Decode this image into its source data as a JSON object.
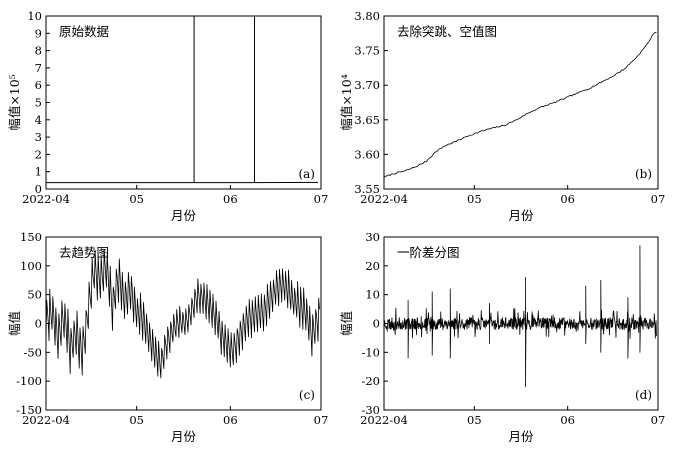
{
  "chart_data": [
    {
      "type": "line",
      "tag": "(a)",
      "title": "原始数据",
      "xlabel": "月份",
      "ylabel": "幅值×10⁵",
      "x_ticks": [
        "2022-04",
        "05",
        "06",
        "07"
      ],
      "xlim": [
        "2022-04-01",
        "2022-07-01"
      ],
      "ylim": [
        0,
        10
      ],
      "y_ticks": [
        "0",
        "1",
        "2",
        "3",
        "4",
        "5",
        "6",
        "7",
        "8",
        "9",
        "10"
      ],
      "series": [
        {
          "points": [
            [
              "2022-04-01",
              0.37
            ],
            [
              "2022-05-20",
              0.37
            ],
            [
              "2022-05-20",
              10
            ],
            [
              "2022-05-20",
              0.37
            ],
            [
              "2022-06-09",
              0.37
            ],
            [
              "2022-06-09",
              10
            ],
            [
              "2022-06-09",
              0.37
            ],
            [
              "2022-06-30",
              0.38
            ]
          ]
        }
      ]
    },
    {
      "type": "line",
      "tag": "(b)",
      "title": "去除突跳、空值图",
      "xlabel": "月份",
      "ylabel": "幅值×10⁴",
      "x_ticks": [
        "2022-04",
        "05",
        "06",
        "07"
      ],
      "xlim": [
        "2022-04-01",
        "2022-07-01"
      ],
      "ylim": [
        3.55,
        3.8
      ],
      "y_ticks": [
        "3.55",
        "3.60",
        "3.65",
        "3.70",
        "3.75",
        "3.80"
      ],
      "series": [
        {
          "points": [
            [
              "2022-04-01",
              3.567
            ],
            [
              "2022-04-04",
              3.572
            ],
            [
              "2022-04-08",
              3.576
            ],
            [
              "2022-04-12",
              3.583
            ],
            [
              "2022-04-15",
              3.59
            ],
            [
              "2022-04-18",
              3.603
            ],
            [
              "2022-04-21",
              3.612
            ],
            [
              "2022-04-25",
              3.619
            ],
            [
              "2022-04-29",
              3.627
            ],
            [
              "2022-05-03",
              3.633
            ],
            [
              "2022-05-07",
              3.638
            ],
            [
              "2022-05-11",
              3.642
            ],
            [
              "2022-05-15",
              3.65
            ],
            [
              "2022-05-19",
              3.66
            ],
            [
              "2022-05-23",
              3.668
            ],
            [
              "2022-05-27",
              3.674
            ],
            [
              "2022-05-31",
              3.681
            ],
            [
              "2022-06-04",
              3.688
            ],
            [
              "2022-06-08",
              3.695
            ],
            [
              "2022-06-12",
              3.704
            ],
            [
              "2022-06-16",
              3.713
            ],
            [
              "2022-06-20",
              3.724
            ],
            [
              "2022-06-24",
              3.741
            ],
            [
              "2022-06-27",
              3.757
            ],
            [
              "2022-06-30",
              3.777
            ]
          ]
        }
      ]
    },
    {
      "type": "line",
      "tag": "(c)",
      "title": "去趋势图",
      "xlabel": "月份",
      "ylabel": "幅值",
      "x_ticks": [
        "2022-04",
        "05",
        "06",
        "07"
      ],
      "xlim": [
        "2022-04-01",
        "2022-07-01"
      ],
      "ylim": [
        -150,
        150
      ],
      "y_ticks": [
        "-150",
        "-100",
        "-50",
        "0",
        "50",
        "100",
        "150"
      ],
      "series": [
        {
          "points": [
            [
              "2022-04-01",
              5
            ],
            [
              "2022-04-03",
              20
            ],
            [
              "2022-04-05",
              -25
            ],
            [
              "2022-04-07",
              10
            ],
            [
              "2022-04-09",
              -40
            ],
            [
              "2022-04-11",
              -20
            ],
            [
              "2022-04-13",
              -50
            ],
            [
              "2022-04-15",
              20
            ],
            [
              "2022-04-16",
              60
            ],
            [
              "2022-04-17",
              90
            ],
            [
              "2022-04-19",
              75
            ],
            [
              "2022-04-21",
              95
            ],
            [
              "2022-04-23",
              30
            ],
            [
              "2022-04-25",
              80
            ],
            [
              "2022-04-27",
              40
            ],
            [
              "2022-04-29",
              60
            ],
            [
              "2022-05-01",
              20
            ],
            [
              "2022-05-03",
              10
            ],
            [
              "2022-05-05",
              -20
            ],
            [
              "2022-05-07",
              -50
            ],
            [
              "2022-05-09",
              -70
            ],
            [
              "2022-05-11",
              -30
            ],
            [
              "2022-05-13",
              -10
            ],
            [
              "2022-05-15",
              5
            ],
            [
              "2022-05-17",
              0
            ],
            [
              "2022-05-19",
              20
            ],
            [
              "2022-05-21",
              50
            ],
            [
              "2022-05-23",
              45
            ],
            [
              "2022-05-25",
              30
            ],
            [
              "2022-05-27",
              10
            ],
            [
              "2022-05-29",
              -20
            ],
            [
              "2022-05-31",
              -40
            ],
            [
              "2022-06-02",
              -50
            ],
            [
              "2022-06-04",
              -20
            ],
            [
              "2022-06-06",
              0
            ],
            [
              "2022-06-08",
              10
            ],
            [
              "2022-06-10",
              15
            ],
            [
              "2022-06-12",
              20
            ],
            [
              "2022-06-14",
              40
            ],
            [
              "2022-06-16",
              60
            ],
            [
              "2022-06-18",
              70
            ],
            [
              "2022-06-20",
              60
            ],
            [
              "2022-06-22",
              40
            ],
            [
              "2022-06-24",
              30
            ],
            [
              "2022-06-26",
              20
            ],
            [
              "2022-06-28",
              -20
            ],
            [
              "2022-06-30",
              10
            ]
          ],
          "oscillation": [
            [
              "2022-04-01",
              40
            ],
            [
              "2022-04-16",
              40
            ],
            [
              "2022-05-01",
              35
            ],
            [
              "2022-05-16",
              25
            ],
            [
              "2022-06-01",
              30
            ],
            [
              "2022-06-16",
              30
            ],
            [
              "2022-06-30",
              35
            ]
          ]
        }
      ]
    },
    {
      "type": "line",
      "tag": "(d)",
      "title": "一阶差分图",
      "xlabel": "月份",
      "ylabel": "幅值",
      "x_ticks": [
        "2022-04",
        "05",
        "06",
        "07"
      ],
      "xlim": [
        "2022-04-01",
        "2022-07-01"
      ],
      "ylim": [
        -30,
        30
      ],
      "y_ticks": [
        "-30",
        "-20",
        "-10",
        "0",
        "10",
        "20",
        "30"
      ],
      "series": [
        {
          "points": [
            [
              "2022-04-01",
              0
            ],
            [
              "2022-04-08",
              0
            ],
            [
              "2022-04-09",
              8
            ],
            [
              "2022-04-09",
              -12
            ],
            [
              "2022-04-10",
              0
            ],
            [
              "2022-04-16",
              0
            ],
            [
              "2022-04-17",
              11
            ],
            [
              "2022-04-17",
              -11
            ],
            [
              "2022-04-18",
              0
            ],
            [
              "2022-04-22",
              0
            ],
            [
              "2022-04-23",
              12
            ],
            [
              "2022-04-23",
              -12
            ],
            [
              "2022-04-24",
              0
            ],
            [
              "2022-05-05",
              0
            ],
            [
              "2022-05-06",
              -7
            ],
            [
              "2022-05-06",
              7
            ],
            [
              "2022-05-07",
              0
            ],
            [
              "2022-05-17",
              0
            ],
            [
              "2022-05-18",
              16
            ],
            [
              "2022-05-18",
              -22
            ],
            [
              "2022-05-19",
              0
            ],
            [
              "2022-06-06",
              0
            ],
            [
              "2022-06-07",
              13
            ],
            [
              "2022-06-07",
              -7
            ],
            [
              "2022-06-08",
              0
            ],
            [
              "2022-06-11",
              0
            ],
            [
              "2022-06-12",
              15
            ],
            [
              "2022-06-12",
              -10
            ],
            [
              "2022-06-13",
              0
            ],
            [
              "2022-06-20",
              0
            ],
            [
              "2022-06-21",
              9
            ],
            [
              "2022-06-21",
              -12
            ],
            [
              "2022-06-22",
              0
            ],
            [
              "2022-06-24",
              0
            ],
            [
              "2022-06-25",
              27
            ],
            [
              "2022-06-25",
              -10
            ],
            [
              "2022-06-26",
              0
            ],
            [
              "2022-06-30",
              0
            ]
          ],
          "noise_amplitude": 3
        }
      ]
    }
  ]
}
